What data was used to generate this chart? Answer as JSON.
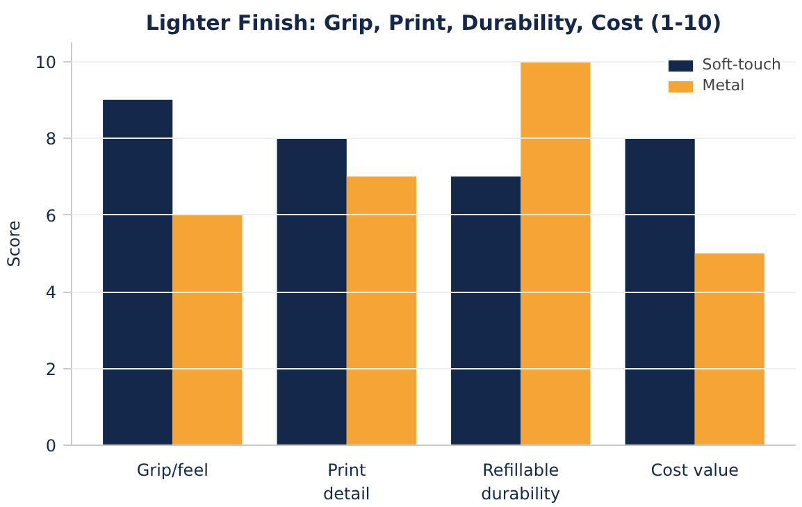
{
  "chart_data": {
    "type": "bar",
    "title": "Lighter Finish: Grip, Print, Durability, Cost (1-10)",
    "ylabel": "Score",
    "categories": [
      "Grip/feel",
      "Print\ndetail",
      "Refillable\ndurability",
      "Cost value"
    ],
    "series": [
      {
        "name": "Soft-touch",
        "color": "#13284a",
        "values": [
          9,
          8,
          7,
          8
        ]
      },
      {
        "name": "Metal",
        "color": "#f5a535",
        "values": [
          6,
          7,
          10,
          5
        ]
      }
    ],
    "ylim": [
      0,
      10.5
    ],
    "yticks": [
      0,
      2,
      4,
      6,
      8,
      10
    ],
    "grid": "y",
    "legend": "top right"
  }
}
